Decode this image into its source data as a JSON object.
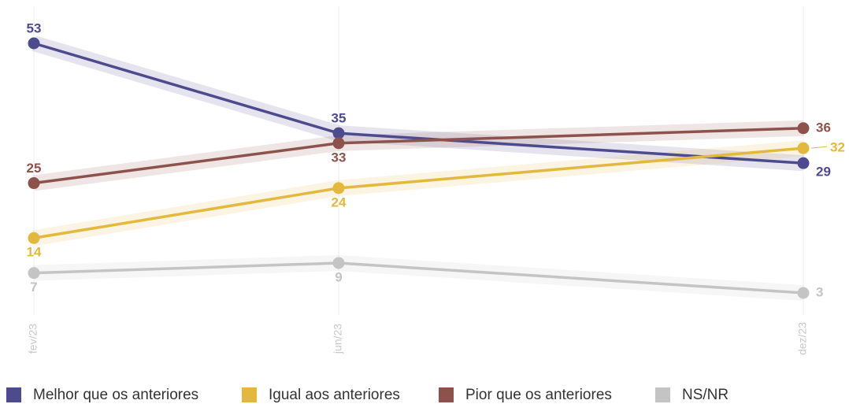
{
  "chart_data": {
    "type": "line",
    "categories": [
      "fev/23",
      "jun/23",
      "dez/23"
    ],
    "series": [
      {
        "name": "Melhor que os anteriores",
        "color": "#4e4a8e",
        "values": [
          53,
          35,
          29
        ]
      },
      {
        "name": "Igual aos anteriores",
        "color": "#e3b83f",
        "values": [
          14,
          24,
          32
        ]
      },
      {
        "name": "Pior que os anteriores",
        "color": "#8e524c",
        "values": [
          25,
          33,
          36
        ]
      },
      {
        "name": "NS/NR",
        "color": "#c4c4c4",
        "values": [
          7,
          9,
          3
        ]
      }
    ],
    "grid": true
  }
}
